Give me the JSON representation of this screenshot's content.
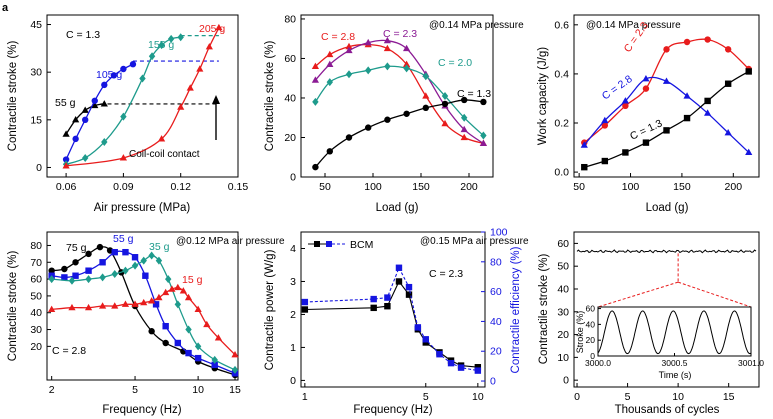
{
  "panel_label": "a",
  "chart_data": [
    {
      "id": "a",
      "type": "line",
      "title": "",
      "annotation": "C = 1.3",
      "note": "Coil-coil contact",
      "xlabel": "Air pressure (MPa)",
      "ylabel": "Contractile stroke (%)",
      "xlim": [
        0.05,
        0.15
      ],
      "ylim": [
        -3,
        48
      ],
      "xticks": [
        "0.06",
        "0.09",
        "0.12",
        "0.15"
      ],
      "xtick_values": [
        0.06,
        0.09,
        0.12,
        0.15
      ],
      "yticks": [
        "0",
        "15",
        "30",
        "45"
      ],
      "ytick_values": [
        0,
        15,
        30,
        45
      ],
      "series": [
        {
          "name": "55 g",
          "color": "#000000",
          "marker": "triangle",
          "x": [
            0.06,
            0.065,
            0.07,
            0.075,
            0.08
          ],
          "y": [
            10.5,
            15,
            18,
            19.5,
            20
          ],
          "plateau": {
            "from": 0.078,
            "to": 0.14,
            "y": 20
          }
        },
        {
          "name": "105 g",
          "color": "#1515e0",
          "marker": "circle",
          "x": [
            0.06,
            0.065,
            0.07,
            0.075,
            0.08,
            0.085,
            0.09,
            0.095
          ],
          "y": [
            2.5,
            9,
            15,
            21,
            26,
            29,
            31,
            32.5
          ],
          "plateau": {
            "from": 0.095,
            "to": 0.14,
            "y": 33.5
          }
        },
        {
          "name": "155 g",
          "color": "#1e9b8c",
          "marker": "diamond",
          "x": [
            0.06,
            0.07,
            0.08,
            0.09,
            0.1,
            0.105,
            0.11,
            0.115,
            0.12
          ],
          "y": [
            1,
            3,
            8,
            16,
            28,
            35,
            38.5,
            40.5,
            41
          ],
          "plateau": {
            "from": 0.12,
            "to": 0.14,
            "y": 41.5
          }
        },
        {
          "name": "205 g",
          "color": "#e81c1c",
          "marker": "triangle",
          "x": [
            0.06,
            0.09,
            0.11,
            0.12,
            0.125,
            0.13,
            0.135,
            0.14
          ],
          "y": [
            0.5,
            3,
            9,
            19,
            25,
            31,
            38,
            44
          ]
        }
      ]
    },
    {
      "id": "b",
      "type": "line",
      "annotation": "@0.14 MPa pressure",
      "xlabel": "Load (g)",
      "ylabel": "Contractile stroke (%)",
      "xlim": [
        25,
        225
      ],
      "ylim": [
        0,
        82
      ],
      "xticks": [
        "50",
        "100",
        "150",
        "200"
      ],
      "xtick_values": [
        50,
        100,
        150,
        200
      ],
      "yticks": [
        "0",
        "20",
        "40",
        "60",
        "80"
      ],
      "ytick_values": [
        0,
        20,
        40,
        60,
        80
      ],
      "series": [
        {
          "name": "C = 2.8",
          "color": "#e81c1c",
          "marker": "triangle",
          "x": [
            40,
            55,
            75,
            95,
            115,
            135,
            155,
            175,
            195,
            215
          ],
          "y": [
            56,
            62,
            66,
            67,
            65,
            57,
            41,
            27,
            20,
            17
          ]
        },
        {
          "name": "C = 2.3",
          "color": "#8b1b94",
          "marker": "triangle",
          "x": [
            40,
            55,
            75,
            95,
            115,
            135,
            155,
            175,
            195,
            215
          ],
          "y": [
            49,
            57,
            64,
            68,
            69,
            65,
            52,
            36,
            24,
            17
          ]
        },
        {
          "name": "C = 2.0",
          "color": "#1e9b8c",
          "marker": "diamond",
          "x": [
            40,
            55,
            75,
            95,
            115,
            135,
            155,
            175,
            195,
            215
          ],
          "y": [
            38,
            48,
            52,
            54,
            56,
            55,
            51,
            41,
            30,
            21
          ]
        },
        {
          "name": "C = 1.3",
          "color": "#000000",
          "marker": "circle",
          "x": [
            40,
            55,
            75,
            95,
            115,
            135,
            155,
            175,
            195,
            215
          ],
          "y": [
            5,
            13,
            20,
            25,
            29,
            32,
            35,
            37,
            39,
            38
          ]
        }
      ]
    },
    {
      "id": "c",
      "type": "line",
      "annotation": "@0.14 MPa pressure",
      "xlabel": "Load (g)",
      "ylabel": "Work capacity (J/g)",
      "xlim": [
        45,
        225
      ],
      "ylim": [
        -0.02,
        0.64
      ],
      "xticks": [
        "50",
        "100",
        "150",
        "200"
      ],
      "xtick_values": [
        50,
        100,
        150,
        200
      ],
      "yticks": [
        "0.0",
        "0.2",
        "0.4",
        "0.6"
      ],
      "ytick_values": [
        0,
        0.2,
        0.4,
        0.6
      ],
      "series": [
        {
          "name": "C = 2.3",
          "color": "#e81c1c",
          "marker": "circle",
          "x": [
            55,
            75,
            95,
            115,
            135,
            155,
            175,
            195,
            215
          ],
          "y": [
            0.12,
            0.19,
            0.27,
            0.34,
            0.5,
            0.53,
            0.54,
            0.5,
            0.42
          ]
        },
        {
          "name": "C = 2.8",
          "color": "#1515e0",
          "marker": "triangle",
          "x": [
            55,
            75,
            95,
            115,
            135,
            155,
            175,
            195,
            215
          ],
          "y": [
            0.11,
            0.21,
            0.29,
            0.38,
            0.37,
            0.31,
            0.24,
            0.16,
            0.08
          ]
        },
        {
          "name": "C = 1.3",
          "color": "#000000",
          "marker": "square",
          "x": [
            55,
            75,
            95,
            115,
            135,
            155,
            175,
            195,
            215
          ],
          "y": [
            0.02,
            0.045,
            0.08,
            0.12,
            0.17,
            0.22,
            0.29,
            0.36,
            0.41
          ]
        }
      ]
    },
    {
      "id": "d",
      "type": "line",
      "annotation": "@0.12 MPa air pressure",
      "annotation2": "C = 2.8",
      "xlabel": "Frequency (Hz)",
      "ylabel": "Contractile stroke (%)",
      "xscale": "log",
      "xlim": [
        1.9,
        15.5
      ],
      "ylim": [
        0,
        88
      ],
      "xticks": [
        "2",
        "5",
        "10",
        "15"
      ],
      "xtick_values": [
        2,
        5,
        10,
        15
      ],
      "yticks": [
        "20",
        "30",
        "40",
        "50",
        "60",
        "70",
        "80"
      ],
      "ytick_values": [
        20,
        30,
        40,
        50,
        60,
        70,
        80
      ],
      "series": [
        {
          "name": "75 g",
          "color": "#000000",
          "marker": "circle",
          "x": [
            2,
            2.3,
            2.6,
            3,
            3.4,
            3.8,
            4.3,
            5,
            6,
            7,
            8.5,
            10,
            12,
            15
          ],
          "y": [
            65,
            66,
            70,
            75,
            79,
            77,
            64,
            44,
            29,
            22,
            17,
            11,
            7,
            3
          ]
        },
        {
          "name": "55 g",
          "color": "#1515e0",
          "marker": "square",
          "x": [
            2,
            2.3,
            2.6,
            3,
            3.5,
            4,
            4.5,
            5,
            5.6,
            6.3,
            7,
            8,
            9,
            10,
            12,
            15
          ],
          "y": [
            62,
            61,
            62,
            65,
            70,
            76,
            76,
            73,
            62,
            45,
            32,
            22,
            16,
            13,
            9,
            4
          ]
        },
        {
          "name": "35 g",
          "color": "#1e9b8c",
          "marker": "diamond",
          "x": [
            2,
            2.5,
            3,
            3.5,
            4,
            4.5,
            5,
            5.5,
            6,
            6.5,
            7.2,
            8,
            9,
            10,
            12,
            15
          ],
          "y": [
            60,
            59,
            60,
            61,
            63,
            65,
            68,
            71,
            74,
            71,
            60,
            45,
            30,
            20,
            12,
            6
          ]
        },
        {
          "name": "15 g",
          "color": "#e81c1c",
          "marker": "triangle",
          "x": [
            2,
            2.5,
            3,
            3.5,
            4,
            4.5,
            5,
            5.5,
            6,
            6.5,
            7,
            7.5,
            8,
            8.5,
            9,
            10,
            11,
            12.5,
            15
          ],
          "y": [
            42,
            43,
            43,
            44,
            44,
            45,
            45,
            46,
            47,
            49,
            52,
            54,
            55,
            53,
            49,
            42,
            33,
            25,
            15
          ]
        }
      ]
    },
    {
      "id": "e",
      "type": "line",
      "annotation": "@0.15 MPa air pressure",
      "annotation2": "C = 2.3",
      "legend": "BCM",
      "xlabel": "Frequency (Hz)",
      "ylabel": "Contractile power (W/g)",
      "ylabel_right": "Contractile efficiency (%)",
      "xscale": "log",
      "xlim": [
        0.95,
        11
      ],
      "ylim": [
        -0.2,
        4.5
      ],
      "ylim_right": [
        -4,
        100
      ],
      "xticks": [
        "1",
        "5",
        "10"
      ],
      "xtick_values": [
        1,
        5,
        10
      ],
      "yticks": [
        "0",
        "1",
        "2",
        "3",
        "4"
      ],
      "ytick_values": [
        0,
        1,
        2,
        3,
        4
      ],
      "yticks_right": [
        "0",
        "20",
        "40",
        "60",
        "80",
        "100"
      ],
      "ytick_right_values": [
        0,
        20,
        40,
        60,
        80,
        100
      ],
      "series": [
        {
          "name": "Contractile power",
          "color": "#000000",
          "marker": "square",
          "axis": "left",
          "x": [
            1,
            2.5,
            3,
            3.5,
            4,
            4.5,
            5,
            6,
            7,
            8,
            10
          ],
          "y": [
            2.15,
            2.2,
            2.25,
            3.0,
            2.6,
            1.55,
            1.15,
            0.85,
            0.6,
            0.45,
            0.4
          ]
        },
        {
          "name": "Contractile efficiency",
          "color": "#1515e0",
          "marker": "square",
          "axis": "right",
          "dashed": true,
          "x": [
            1,
            2.5,
            3,
            3.5,
            4,
            4.5,
            5,
            6,
            7,
            8,
            10
          ],
          "y": [
            53,
            55,
            56,
            76,
            63,
            36,
            28,
            18,
            12,
            9,
            7
          ]
        }
      ]
    },
    {
      "id": "f",
      "type": "line",
      "xlabel": "Thousands of cycles",
      "ylabel": "Contractile stroke (%)",
      "xlim": [
        -0.3,
        18
      ],
      "ylim": [
        -3,
        65
      ],
      "xticks": [
        "0",
        "5",
        "10",
        "15"
      ],
      "xtick_values": [
        0,
        5,
        10,
        15
      ],
      "yticks": [
        "0",
        "10",
        "20",
        "30",
        "40",
        "50",
        "60"
      ],
      "ytick_values": [
        0,
        10,
        20,
        30,
        40,
        50,
        60
      ],
      "series": [
        {
          "name": "stroke",
          "color": "#000000",
          "level": 56.5,
          "x_from": 0,
          "x_to": 17.7
        }
      ],
      "zoom_at": 10,
      "inset": {
        "xlabel": "Time (s)",
        "ylabel": "Stroke (%)",
        "xlim": [
          3000,
          3001
        ],
        "ylim": [
          0,
          62
        ],
        "xticks": [
          "3000.0",
          "3000.5",
          "3001.0"
        ],
        "xtick_values": [
          3000,
          3000.5,
          3001
        ],
        "yticks": [
          "0",
          "20",
          "40",
          "60"
        ],
        "ytick_values": [
          0,
          20,
          40,
          60
        ],
        "cycles": 5,
        "min": 3,
        "max": 57
      }
    }
  ]
}
